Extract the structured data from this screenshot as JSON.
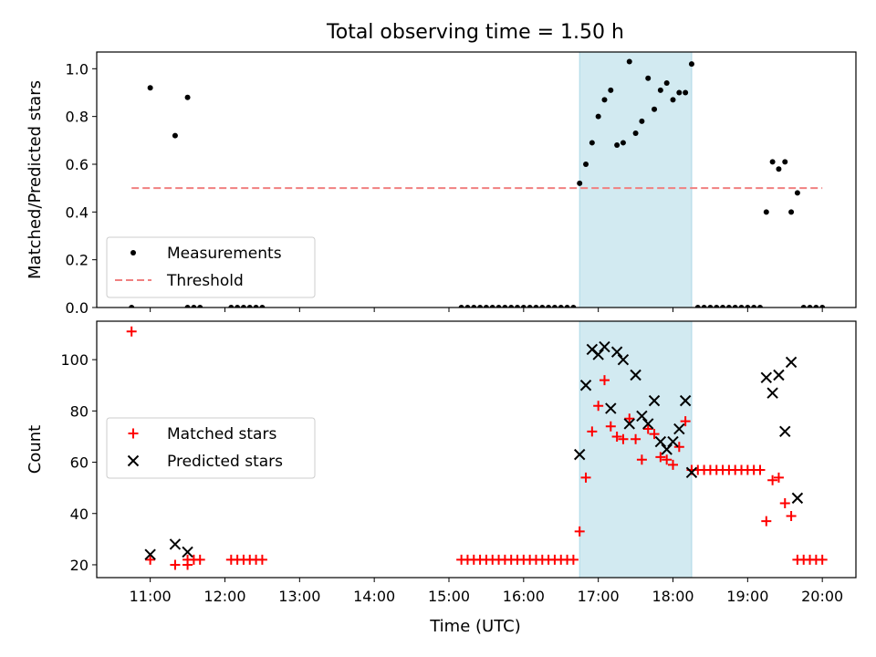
{
  "figure": {
    "title": "Total observing time = 1.50 h",
    "xlabel": "Time (UTC)",
    "highlight_color": "#add8e6",
    "highlight_range": [
      "16:45",
      "18:15"
    ]
  },
  "chart_data": [
    {
      "type": "scatter",
      "ylabel": "Matched/Predicted stars",
      "ylim": [
        0,
        1.07
      ],
      "yticks": [
        "0.0",
        "0.2",
        "0.4",
        "0.6",
        "0.8",
        "1.0"
      ],
      "xlim": [
        "10:17",
        "20:27"
      ],
      "xticks": [
        "11:00",
        "12:00",
        "13:00",
        "14:00",
        "15:00",
        "16:00",
        "17:00",
        "18:00",
        "19:00",
        "20:00"
      ],
      "legend_position": "lower-left",
      "series": [
        {
          "name": "Measurements",
          "marker": "dot",
          "color": "#000000",
          "points": [
            [
              "10:45",
              0.0
            ],
            [
              "11:00",
              0.92
            ],
            [
              "11:20",
              0.72
            ],
            [
              "11:30",
              0.88
            ],
            [
              "11:30",
              0.0
            ],
            [
              "11:35",
              0.0
            ],
            [
              "11:40",
              0.0
            ],
            [
              "12:05",
              0.0
            ],
            [
              "12:10",
              0.0
            ],
            [
              "12:15",
              0.0
            ],
            [
              "12:20",
              0.0
            ],
            [
              "12:25",
              0.0
            ],
            [
              "12:30",
              0.0
            ],
            [
              "15:10",
              0.0
            ],
            [
              "15:15",
              0.0
            ],
            [
              "15:20",
              0.0
            ],
            [
              "15:25",
              0.0
            ],
            [
              "15:30",
              0.0
            ],
            [
              "15:35",
              0.0
            ],
            [
              "15:40",
              0.0
            ],
            [
              "15:45",
              0.0
            ],
            [
              "15:50",
              0.0
            ],
            [
              "15:55",
              0.0
            ],
            [
              "16:00",
              0.0
            ],
            [
              "16:05",
              0.0
            ],
            [
              "16:10",
              0.0
            ],
            [
              "16:15",
              0.0
            ],
            [
              "16:20",
              0.0
            ],
            [
              "16:25",
              0.0
            ],
            [
              "16:30",
              0.0
            ],
            [
              "16:35",
              0.0
            ],
            [
              "16:40",
              0.0
            ],
            [
              "16:45",
              0.52
            ],
            [
              "16:50",
              0.6
            ],
            [
              "16:55",
              0.69
            ],
            [
              "17:00",
              0.8
            ],
            [
              "17:05",
              0.87
            ],
            [
              "17:10",
              0.91
            ],
            [
              "17:15",
              0.68
            ],
            [
              "17:20",
              0.69
            ],
            [
              "17:25",
              1.03
            ],
            [
              "17:30",
              0.73
            ],
            [
              "17:35",
              0.78
            ],
            [
              "17:40",
              0.96
            ],
            [
              "17:45",
              0.83
            ],
            [
              "17:50",
              0.91
            ],
            [
              "17:55",
              0.94
            ],
            [
              "18:00",
              0.87
            ],
            [
              "18:05",
              0.9
            ],
            [
              "18:10",
              0.9
            ],
            [
              "18:15",
              1.02
            ],
            [
              "18:20",
              0.0
            ],
            [
              "18:25",
              0.0
            ],
            [
              "18:30",
              0.0
            ],
            [
              "18:35",
              0.0
            ],
            [
              "18:40",
              0.0
            ],
            [
              "18:45",
              0.0
            ],
            [
              "18:50",
              0.0
            ],
            [
              "18:55",
              0.0
            ],
            [
              "19:00",
              0.0
            ],
            [
              "19:05",
              0.0
            ],
            [
              "19:10",
              0.0
            ],
            [
              "19:15",
              0.4
            ],
            [
              "19:20",
              0.61
            ],
            [
              "19:25",
              0.58
            ],
            [
              "19:30",
              0.61
            ],
            [
              "19:35",
              0.4
            ],
            [
              "19:40",
              0.48
            ],
            [
              "19:45",
              0.0
            ],
            [
              "19:50",
              0.0
            ],
            [
              "19:55",
              0.0
            ],
            [
              "20:00",
              0.0
            ]
          ]
        },
        {
          "name": "Threshold",
          "marker": "dashed-line",
          "color": "#f08080",
          "points": [
            [
              "10:45",
              0.5
            ],
            [
              "20:00",
              0.5
            ]
          ]
        }
      ]
    },
    {
      "type": "scatter",
      "ylabel": "Count",
      "ylim": [
        15,
        115
      ],
      "yticks": [
        "20",
        "40",
        "60",
        "80",
        "100"
      ],
      "xlim": [
        "10:17",
        "20:27"
      ],
      "xticks": [
        "11:00",
        "12:00",
        "13:00",
        "14:00",
        "15:00",
        "16:00",
        "17:00",
        "18:00",
        "19:00",
        "20:00"
      ],
      "legend_position": "center-left",
      "series": [
        {
          "name": "Matched stars",
          "marker": "plus",
          "color": "#ff0000",
          "points": [
            [
              "10:45",
              111
            ],
            [
              "11:00",
              22
            ],
            [
              "11:20",
              20
            ],
            [
              "11:30",
              20
            ],
            [
              "11:30",
              22
            ],
            [
              "11:35",
              22
            ],
            [
              "11:40",
              22
            ],
            [
              "12:05",
              22
            ],
            [
              "12:10",
              22
            ],
            [
              "12:15",
              22
            ],
            [
              "12:20",
              22
            ],
            [
              "12:25",
              22
            ],
            [
              "12:30",
              22
            ],
            [
              "15:10",
              22
            ],
            [
              "15:15",
              22
            ],
            [
              "15:20",
              22
            ],
            [
              "15:25",
              22
            ],
            [
              "15:30",
              22
            ],
            [
              "15:35",
              22
            ],
            [
              "15:40",
              22
            ],
            [
              "15:45",
              22
            ],
            [
              "15:50",
              22
            ],
            [
              "15:55",
              22
            ],
            [
              "16:00",
              22
            ],
            [
              "16:05",
              22
            ],
            [
              "16:10",
              22
            ],
            [
              "16:15",
              22
            ],
            [
              "16:20",
              22
            ],
            [
              "16:25",
              22
            ],
            [
              "16:30",
              22
            ],
            [
              "16:35",
              22
            ],
            [
              "16:40",
              22
            ],
            [
              "16:45",
              33
            ],
            [
              "16:50",
              54
            ],
            [
              "16:55",
              72
            ],
            [
              "17:00",
              82
            ],
            [
              "17:05",
              92
            ],
            [
              "17:10",
              74
            ],
            [
              "17:15",
              70
            ],
            [
              "17:20",
              69
            ],
            [
              "17:25",
              77
            ],
            [
              "17:30",
              69
            ],
            [
              "17:35",
              61
            ],
            [
              "17:40",
              73
            ],
            [
              "17:45",
              71
            ],
            [
              "17:50",
              62
            ],
            [
              "17:55",
              61
            ],
            [
              "18:00",
              59
            ],
            [
              "18:05",
              66
            ],
            [
              "18:10",
              76
            ],
            [
              "18:15",
              57
            ],
            [
              "18:20",
              57
            ],
            [
              "18:25",
              57
            ],
            [
              "18:30",
              57
            ],
            [
              "18:35",
              57
            ],
            [
              "18:40",
              57
            ],
            [
              "18:45",
              57
            ],
            [
              "18:50",
              57
            ],
            [
              "18:55",
              57
            ],
            [
              "19:00",
              57
            ],
            [
              "19:05",
              57
            ],
            [
              "19:10",
              57
            ],
            [
              "19:15",
              37
            ],
            [
              "19:20",
              53
            ],
            [
              "19:25",
              54
            ],
            [
              "19:30",
              44
            ],
            [
              "19:35",
              39
            ],
            [
              "19:40",
              22
            ],
            [
              "19:45",
              22
            ],
            [
              "19:50",
              22
            ],
            [
              "19:55",
              22
            ],
            [
              "20:00",
              22
            ]
          ]
        },
        {
          "name": "Predicted stars",
          "marker": "x",
          "color": "#000000",
          "points": [
            [
              "11:00",
              24
            ],
            [
              "11:20",
              28
            ],
            [
              "11:30",
              25
            ],
            [
              "16:45",
              63
            ],
            [
              "16:50",
              90
            ],
            [
              "16:55",
              104
            ],
            [
              "17:00",
              102
            ],
            [
              "17:05",
              105
            ],
            [
              "17:10",
              81
            ],
            [
              "17:15",
              103
            ],
            [
              "17:20",
              100
            ],
            [
              "17:25",
              75
            ],
            [
              "17:30",
              94
            ],
            [
              "17:35",
              78
            ],
            [
              "17:40",
              75
            ],
            [
              "17:45",
              84
            ],
            [
              "17:50",
              68
            ],
            [
              "17:55",
              65
            ],
            [
              "18:00",
              68
            ],
            [
              "18:05",
              73
            ],
            [
              "18:10",
              84
            ],
            [
              "18:15",
              56
            ],
            [
              "19:15",
              93
            ],
            [
              "19:20",
              87
            ],
            [
              "19:25",
              94
            ],
            [
              "19:30",
              72
            ],
            [
              "19:35",
              99
            ],
            [
              "19:40",
              46
            ]
          ]
        }
      ]
    }
  ]
}
